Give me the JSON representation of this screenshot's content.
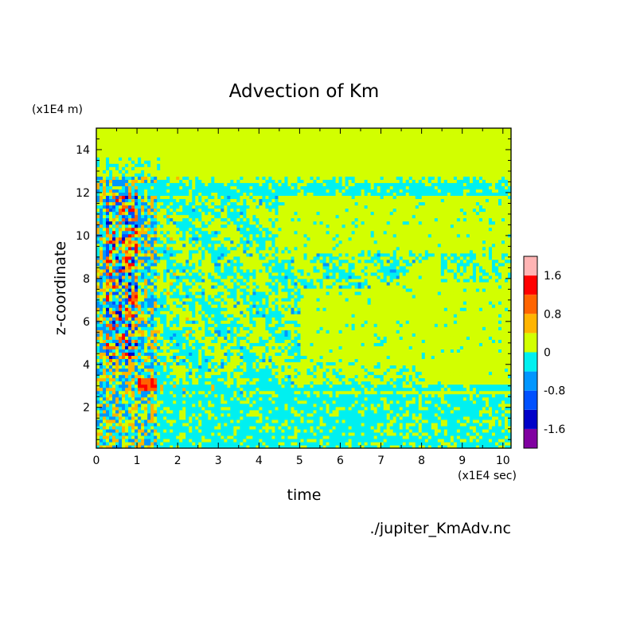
{
  "chart_data": {
    "type": "heatmap",
    "title": "Advection of Km",
    "xlabel": "time",
    "ylabel": "z-coordinate",
    "x_unit": "(x1E4 sec)",
    "y_unit": "(x1E4 m)",
    "source_file": "./jupiter_KmAdv.nc",
    "xlim": [
      0,
      10.2
    ],
    "ylim": [
      0.1,
      15
    ],
    "x_ticks": [
      0,
      1,
      2,
      3,
      4,
      5,
      6,
      7,
      8,
      9,
      10
    ],
    "y_ticks": [
      2,
      4,
      6,
      8,
      10,
      12,
      14
    ],
    "colorbar": {
      "levels": [
        -2.0,
        -1.6,
        -1.2,
        -0.8,
        -0.4,
        0,
        0.4,
        0.8,
        1.2,
        1.6,
        2.0
      ],
      "colors": [
        "#8000a0",
        "#0000c8",
        "#0050ff",
        "#0096ff",
        "#00f0f0",
        "#d2ff00",
        "#ffb400",
        "#ff6400",
        "#ff0000",
        "#ffb4b4"
      ],
      "tick_labels": [
        "1.6",
        "0.8",
        "0",
        "-0.8",
        "-1.6"
      ],
      "tick_values": [
        1.6,
        0.8,
        0,
        -0.8,
        -1.6
      ]
    },
    "regions": [
      {
        "description": "spin-up turbulent layer",
        "x": [
          0,
          1.5
        ],
        "z": [
          0.1,
          13
        ],
        "value_range": [
          -1.6,
          1.6
        ]
      },
      {
        "description": "persistent negative band near z=12",
        "x": [
          1,
          10.2
        ],
        "z": [
          11.8,
          12.5
        ],
        "value": -0.4
      },
      {
        "description": "mixed layer",
        "x": [
          1.5,
          5
        ],
        "z": [
          0.5,
          11.5
        ],
        "value_range": [
          -0.8,
          0.4
        ]
      },
      {
        "description": "lower negative layer",
        "x": [
          5,
          10.2
        ],
        "z": [
          0.1,
          2.6
        ],
        "value": -0.4
      },
      {
        "description": "near-zero upper region",
        "x": [
          0,
          10.2
        ],
        "z": [
          12.6,
          15
        ],
        "value": 0
      }
    ]
  }
}
